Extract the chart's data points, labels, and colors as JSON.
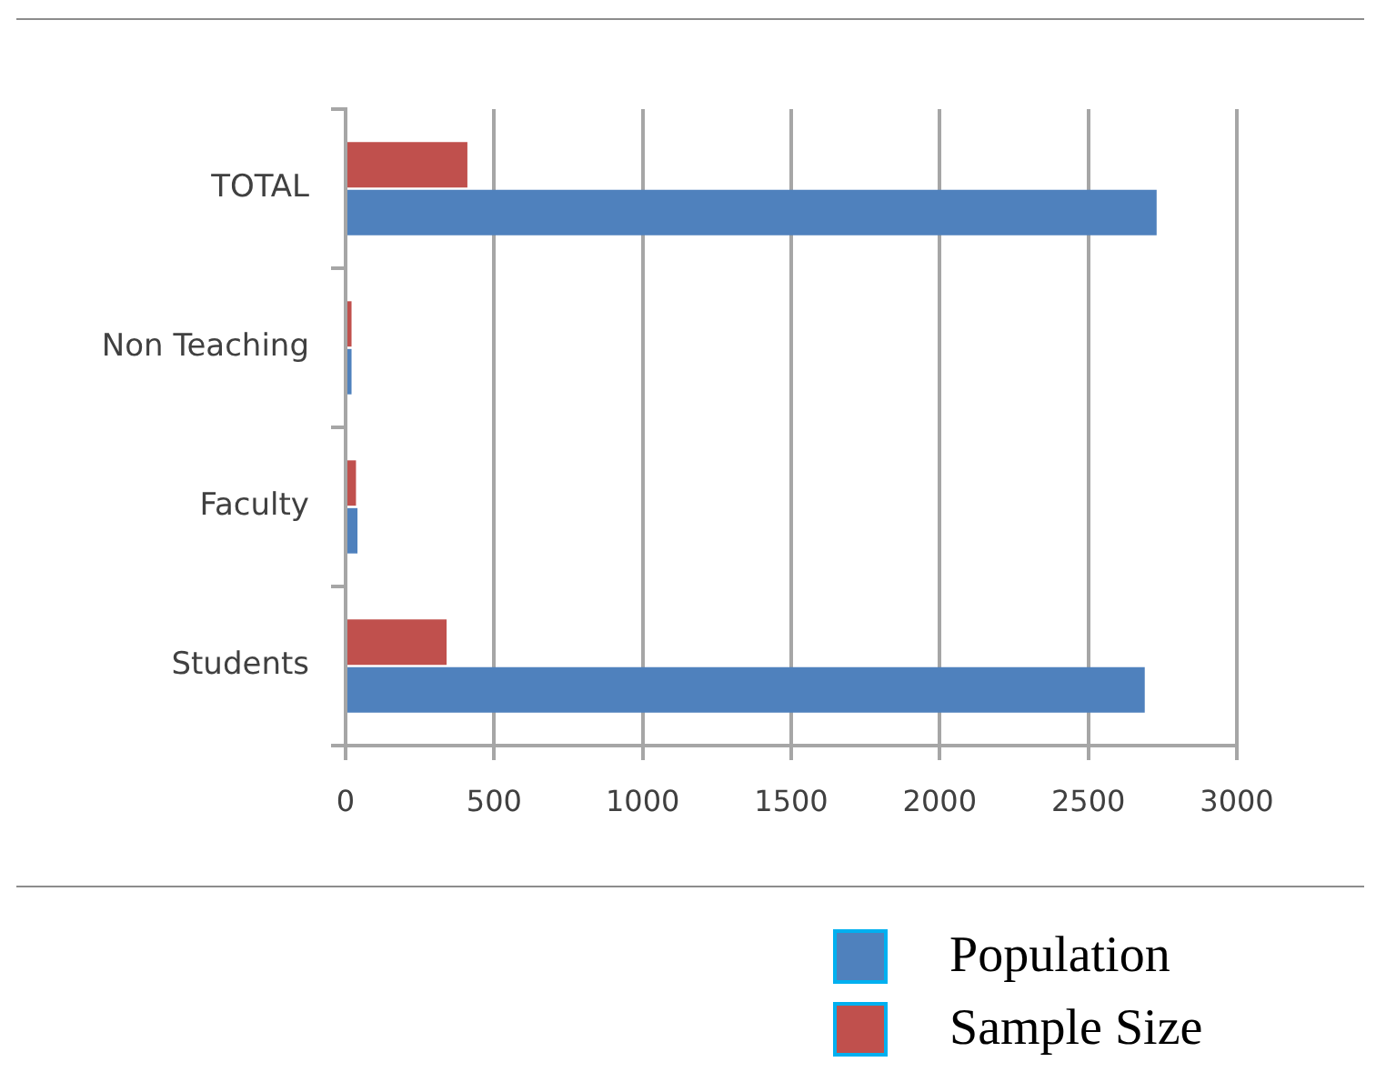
{
  "chart_data": {
    "type": "bar",
    "orientation": "horizontal",
    "categories": [
      "TOTAL",
      "Non Teaching",
      "Faculty",
      "Students"
    ],
    "series": [
      {
        "name": "Population",
        "color": "#4f81bd",
        "values": [
          2730,
          20,
          40,
          2690
        ]
      },
      {
        "name": "Sample Size",
        "color": "#c0504d",
        "values": [
          410,
          20,
          35,
          340
        ]
      }
    ],
    "xlim": [
      0,
      3000
    ],
    "xticks": [
      0,
      500,
      1000,
      1500,
      2000,
      2500,
      3000
    ],
    "grid": "x",
    "legend": "bottom right"
  }
}
